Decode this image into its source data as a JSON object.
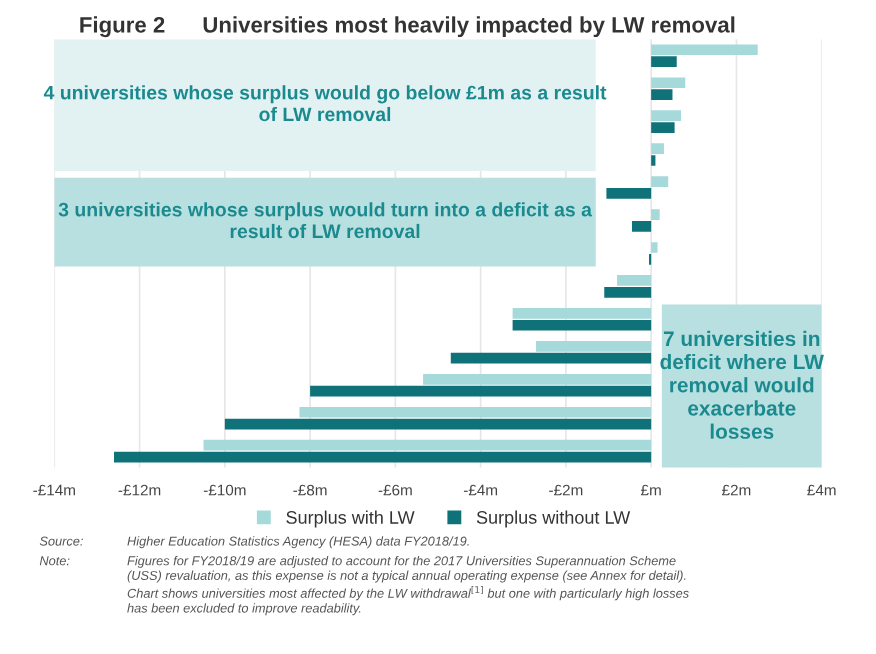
{
  "chart_data": {
    "type": "bar",
    "orientation": "horizontal",
    "title": "Figure 2      Universities most heavily impacted by LW removal",
    "categories": [
      null,
      null,
      null,
      null,
      null,
      null,
      null,
      null,
      null,
      null,
      null,
      null,
      null
    ],
    "series": [
      {
        "name": "Surplus with LW",
        "color": "#a6d9da",
        "values": [
          2.5,
          0.8,
          0.7,
          0.3,
          0.4,
          0.2,
          0.15,
          -0.8,
          -3.25,
          -2.7,
          -5.35,
          -8.25,
          -10.5
        ]
      },
      {
        "name": "Surplus without LW",
        "color": "#0f7279",
        "values": [
          0.6,
          0.5,
          0.55,
          0.1,
          -1.05,
          -0.45,
          -0.05,
          -1.1,
          -3.25,
          -4.7,
          -8.0,
          -10.0,
          -12.6
        ]
      }
    ],
    "xlim": [
      -14,
      4
    ],
    "xticks": [
      {
        "value": -14,
        "label": "-£14m"
      },
      {
        "value": -12,
        "label": "-£12m"
      },
      {
        "value": -10,
        "label": "-£10m"
      },
      {
        "value": -8,
        "label": "-£8m"
      },
      {
        "value": -6,
        "label": "-£6m"
      },
      {
        "value": -4,
        "label": "-£4m"
      },
      {
        "value": -2,
        "label": "-£2m"
      },
      {
        "value": 0,
        "label": "£m"
      },
      {
        "value": 2,
        "label": "£2m"
      },
      {
        "value": 4,
        "label": "£4m"
      }
    ],
    "grid": "x",
    "legend": "bottom",
    "annotations": [
      "4 universities whose surplus would go below £1m as a result\nof LW removal",
      "3 universities whose surplus would turn into a deficit as a\nresult of LW removal",
      "7 universities in\ndeficit where LW\nremoval would\nexacerbate\nlosses",
      "Source:",
      "Higher Education Statistics Agency (HESA) data FY2018/19.",
      "Note:",
      "Figures for FY2018/19 are adjusted to account for the 2017 Universities Superannuation Scheme\n(USS) revaluation, as this expense is not a typical annual operating expense (see Annex for detail).\nChart shows universities most affected by the LW withdrawal$^{[1]}$ but one with particularly high losses\nhas been excluded to improve readability."
    ]
  }
}
